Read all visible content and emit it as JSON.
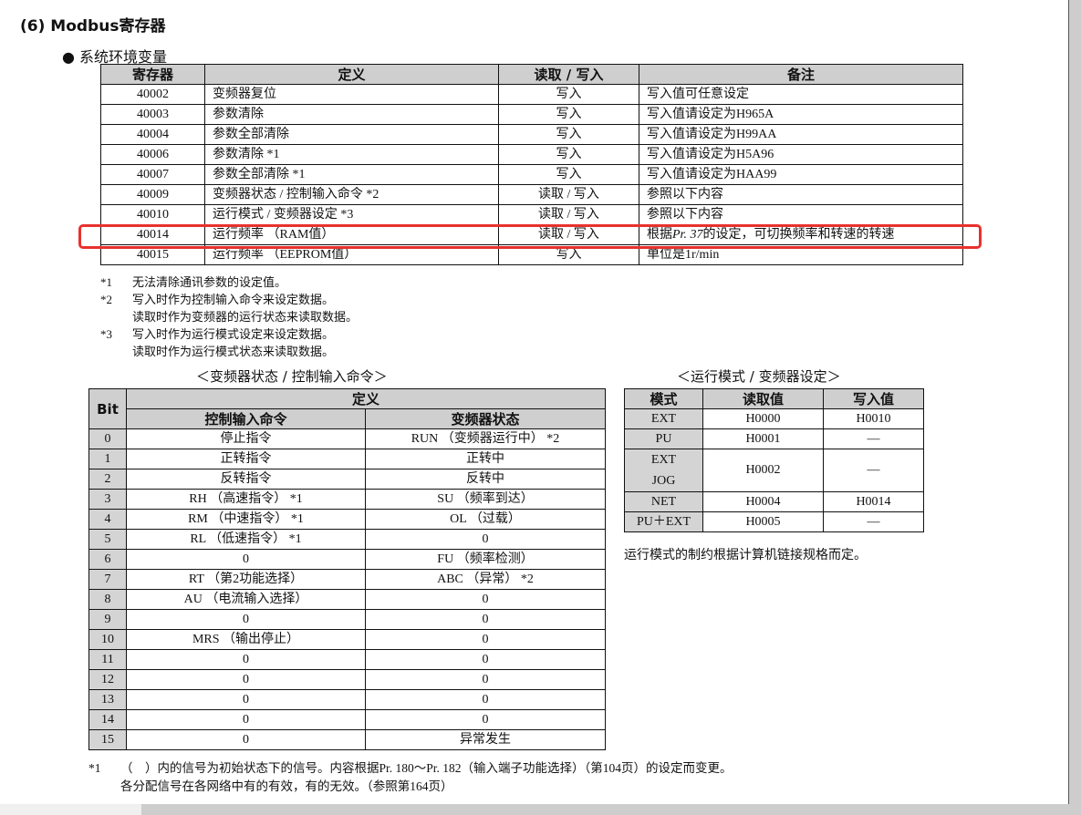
{
  "heading": "(6)  Modbus寄存器",
  "subheading": "● 系统环境变量",
  "registers": {
    "headers": [
      "寄存器",
      "定义",
      "读取 / 写入",
      "备注"
    ],
    "rows": [
      [
        "40002",
        "变频器复位",
        "写入",
        "写入值可任意设定"
      ],
      [
        "40003",
        "参数清除",
        "写入",
        "写入值请设定为H965A"
      ],
      [
        "40004",
        "参数全部清除",
        "写入",
        "写入值请设定为H99AA"
      ],
      [
        "40006",
        "参数清除 *1",
        "写入",
        "写入值请设定为H5A96"
      ],
      [
        "40007",
        "参数全部清除 *1",
        "写入",
        "写入值请设定为HAA99"
      ],
      [
        "40009",
        "变频器状态 / 控制输入命令 *2",
        "读取 / 写入",
        "参照以下内容"
      ],
      [
        "40010",
        "运行模式 / 变频器设定 *3",
        "读取 / 写入",
        "参照以下内容"
      ],
      [
        "40014",
        "运行频率 （RAM值）",
        "读取 / 写入",
        "根据Pr. 37的设定，可切换频率和转速的转速"
      ],
      [
        "40015",
        "运行频率 （EEPROM值）",
        "写入",
        "单位是1r/min"
      ]
    ],
    "highlighted_row": "40014",
    "highlight_color": "#e8312d"
  },
  "footnotes": [
    {
      "mark": "*1",
      "lines": [
        "无法清除通讯参数的设定值。"
      ]
    },
    {
      "mark": "*2",
      "lines": [
        "写入时作为控制输入命令来设定数据。",
        "读取时作为变频器的运行状态来读取数据。"
      ]
    },
    {
      "mark": "*3",
      "lines": [
        "写入时作为运行模式设定来设定数据。",
        "读取时作为运行模式状态来读取数据。"
      ]
    }
  ],
  "bit_table": {
    "caption": "＜变频器状态 / 控制输入命令＞",
    "bit_header": "Bit",
    "def_header": "定义",
    "col1": "控制输入命令",
    "col2": "变频器状态",
    "rows": [
      [
        "0",
        "停止指令",
        "RUN （变频器运行中） *2"
      ],
      [
        "1",
        "正转指令",
        "正转中"
      ],
      [
        "2",
        "反转指令",
        "反转中"
      ],
      [
        "3",
        "RH （高速指令） *1",
        "SU （频率到达）"
      ],
      [
        "4",
        "RM （中速指令） *1",
        "OL （过载）"
      ],
      [
        "5",
        "RL （低速指令） *1",
        "0"
      ],
      [
        "6",
        "0",
        "FU （频率检测）"
      ],
      [
        "7",
        "RT （第2功能选择）",
        "ABC （异常） *2"
      ],
      [
        "8",
        "AU （电流输入选择）",
        "0"
      ],
      [
        "9",
        "0",
        "0"
      ],
      [
        "10",
        "MRS （输出停止）",
        "0"
      ],
      [
        "11",
        "0",
        "0"
      ],
      [
        "12",
        "0",
        "0"
      ],
      [
        "13",
        "0",
        "0"
      ],
      [
        "14",
        "0",
        "0"
      ],
      [
        "15",
        "0",
        "异常发生"
      ]
    ]
  },
  "mode_table": {
    "caption": "＜运行模式 / 变频器设定＞",
    "headers": [
      "模式",
      "读取值",
      "写入值"
    ],
    "rows": [
      [
        "EXT",
        "H0000",
        "H0010"
      ],
      [
        "PU",
        "H0001",
        "—"
      ],
      [
        "EXT JOG",
        "H0002",
        "—"
      ],
      [
        "NET",
        "H0004",
        "H0014"
      ],
      [
        "PU＋EXT",
        "H0005",
        "—"
      ]
    ],
    "note": "运行模式的制约根据计算机链接规格而定。"
  },
  "bottom_notes": {
    "mark": "*1",
    "line1": "（　）内的信号为初始状态下的信号。内容根据Pr. 180～Pr. 182（输入端子功能选择）（第104页）的设定而变更。",
    "line2": "各分配信号在各网络中有的有效，有的无效。（参照第164页）"
  }
}
